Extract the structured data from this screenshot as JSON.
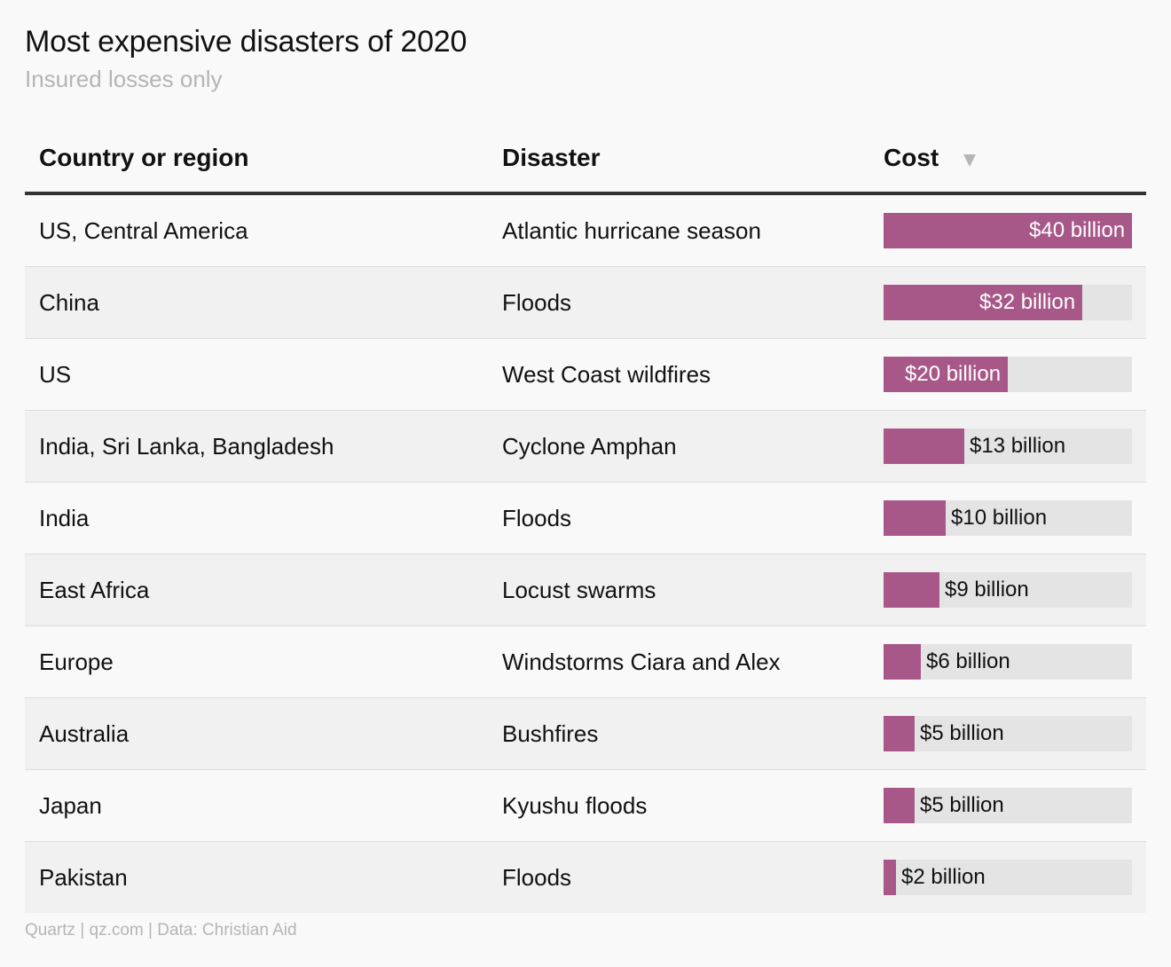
{
  "title": "Most expensive disasters of 2020",
  "subtitle": "Insured losses only",
  "headers": {
    "country": "Country or region",
    "disaster": "Disaster",
    "cost": "Cost",
    "sort_icon": "sort-descending-icon"
  },
  "colors": {
    "bar": "#a85888",
    "track": "#e4e4e4",
    "label_inside": "#ffffff",
    "label_outside": "#111111"
  },
  "chart_data": {
    "type": "table",
    "columns": [
      "Country or region",
      "Disaster",
      "Cost"
    ],
    "value_max": 40,
    "rows": [
      {
        "country": "US, Central America",
        "disaster": "Atlantic hurricane season",
        "value": 40,
        "label": "$40 billion"
      },
      {
        "country": "China",
        "disaster": "Floods",
        "value": 32,
        "label": "$32 billion"
      },
      {
        "country": "US",
        "disaster": "West Coast wildfires",
        "value": 20,
        "label": "$20 billion"
      },
      {
        "country": "India, Sri Lanka, Bangladesh",
        "disaster": "Cyclone Amphan",
        "value": 13,
        "label": "$13 billion"
      },
      {
        "country": "India",
        "disaster": "Floods",
        "value": 10,
        "label": "$10 billion"
      },
      {
        "country": "East Africa",
        "disaster": "Locust swarms",
        "value": 9,
        "label": "$9 billion"
      },
      {
        "country": "Europe",
        "disaster": "Windstorms Ciara and Alex",
        "value": 6,
        "label": "$6 billion"
      },
      {
        "country": "Australia",
        "disaster": "Bushfires",
        "value": 5,
        "label": "$5 billion"
      },
      {
        "country": "Japan",
        "disaster": "Kyushu floods",
        "value": 5,
        "label": "$5 billion"
      },
      {
        "country": "Pakistan",
        "disaster": "Floods",
        "value": 2,
        "label": "$2 billion"
      }
    ]
  },
  "footer": "Quartz | qz.com | Data: Christian Aid"
}
